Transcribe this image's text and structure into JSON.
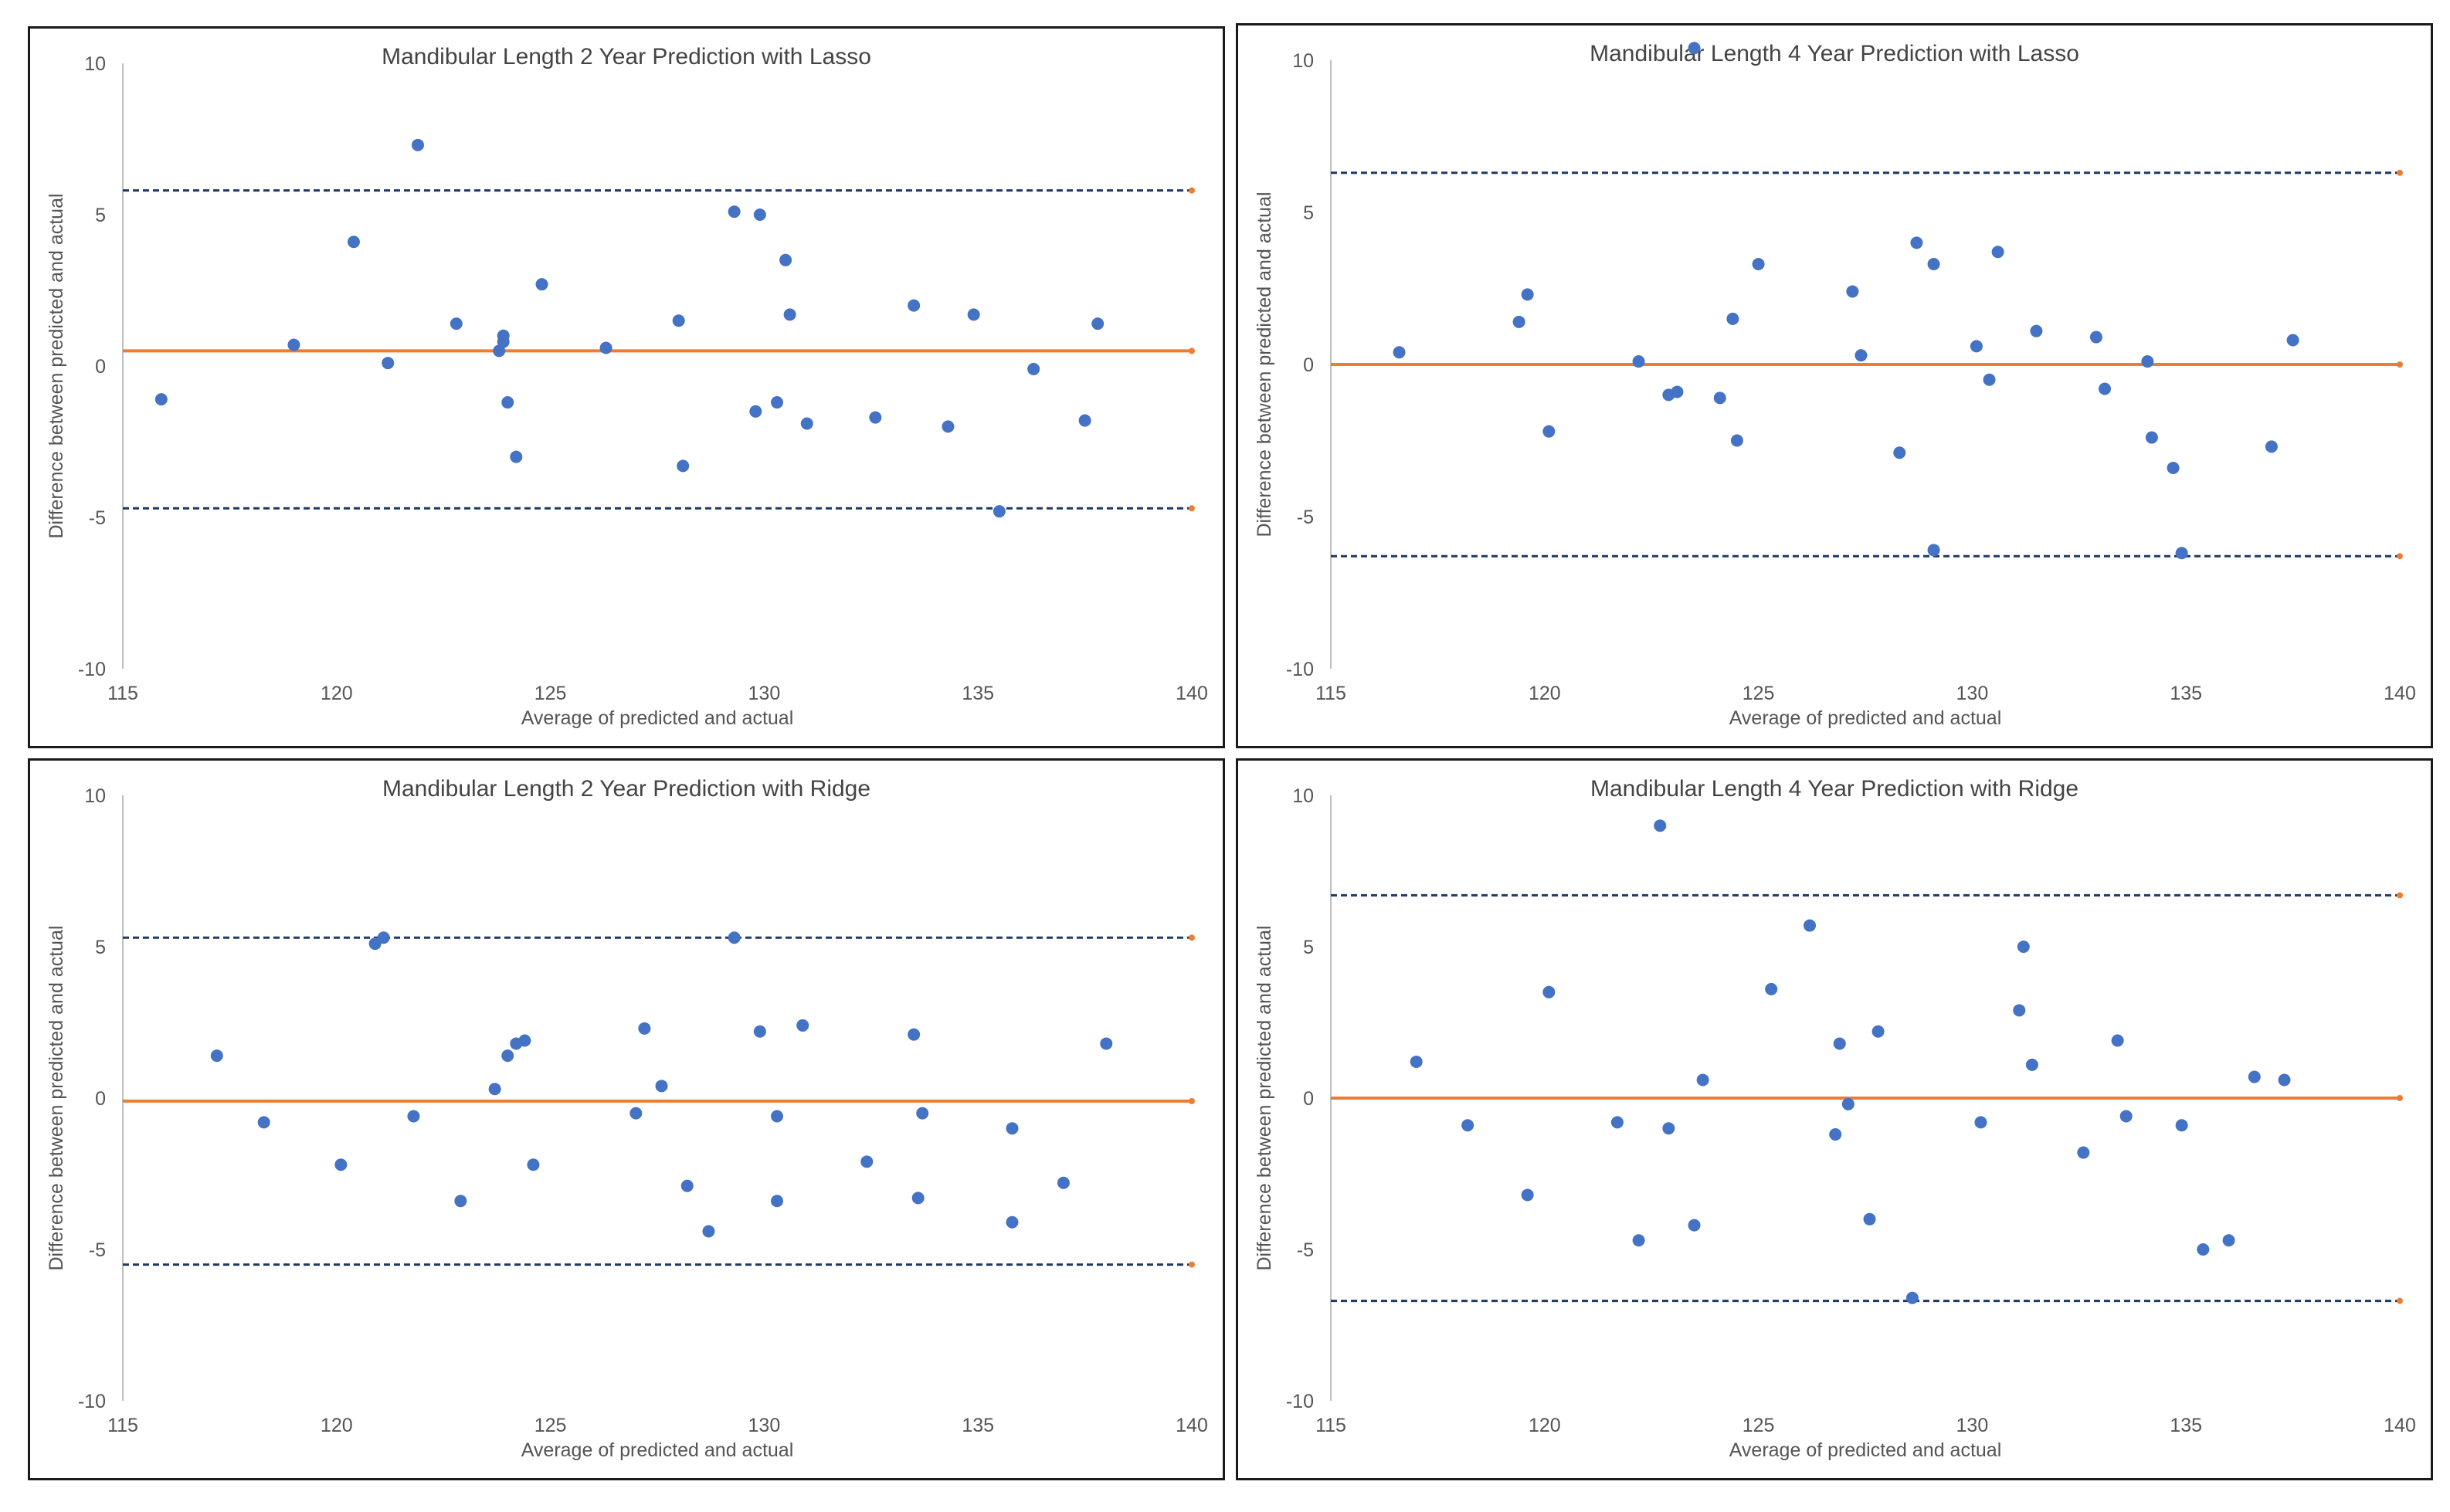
{
  "colors": {
    "points": "#4472c4",
    "mean_line": "#ed7d31",
    "limit_line": "#1f3864",
    "axis": "#bfbfbf",
    "text": "#555555",
    "border": "#1a1a1a"
  },
  "chart_data": [
    {
      "type": "scatter",
      "title": "Mandibular Length 2 Year Prediction with Lasso",
      "xlabel": "Average of predicted and actual",
      "ylabel": "Difference between predicted and actual",
      "xlim": [
        115,
        140
      ],
      "ylim": [
        -10,
        10
      ],
      "xticks": [
        "115",
        "120",
        "125",
        "130",
        "135",
        "140"
      ],
      "yticks": [
        "10",
        "5",
        "0",
        "-5",
        "-10"
      ],
      "mean": 0.5,
      "upper_limit": 5.8,
      "lower_limit": -4.7,
      "grid": false,
      "legend": "none",
      "points": [
        [
          115.9,
          -1.1
        ],
        [
          119.0,
          0.7
        ],
        [
          120.4,
          4.1
        ],
        [
          121.2,
          0.1
        ],
        [
          121.9,
          7.3
        ],
        [
          122.8,
          1.4
        ],
        [
          123.8,
          0.5
        ],
        [
          123.9,
          1.0
        ],
        [
          123.9,
          0.8
        ],
        [
          124.0,
          -1.2
        ],
        [
          124.2,
          -3.0
        ],
        [
          124.8,
          2.7
        ],
        [
          126.3,
          0.6
        ],
        [
          128.0,
          1.5
        ],
        [
          128.1,
          -3.3
        ],
        [
          129.3,
          5.1
        ],
        [
          129.8,
          -1.5
        ],
        [
          129.9,
          5.0
        ],
        [
          130.3,
          -1.2
        ],
        [
          130.5,
          3.5
        ],
        [
          130.6,
          1.7
        ],
        [
          131.0,
          -1.9
        ],
        [
          132.6,
          -1.7
        ],
        [
          133.5,
          2.0
        ],
        [
          134.3,
          -2.0
        ],
        [
          134.9,
          1.7
        ],
        [
          135.5,
          -4.8
        ],
        [
          136.3,
          -0.1
        ],
        [
          137.5,
          -1.8
        ],
        [
          137.8,
          1.4
        ]
      ]
    },
    {
      "type": "scatter",
      "title": "Mandibular Length 4 Year Prediction with Lasso",
      "xlabel": "Average of predicted and actual",
      "ylabel": "Difference between predicted and actual",
      "xlim": [
        115,
        140
      ],
      "ylim": [
        -10,
        10
      ],
      "xticks": [
        "115",
        "120",
        "125",
        "130",
        "135",
        "140"
      ],
      "yticks": [
        "10",
        "5",
        "0",
        "-5",
        "-10"
      ],
      "mean": 0.0,
      "upper_limit": 6.3,
      "lower_limit": -6.3,
      "grid": false,
      "legend": "none",
      "points": [
        [
          116.6,
          0.4
        ],
        [
          119.4,
          1.4
        ],
        [
          119.6,
          2.3
        ],
        [
          120.1,
          -2.2
        ],
        [
          122.2,
          0.1
        ],
        [
          122.9,
          -1.0
        ],
        [
          123.1,
          -0.9
        ],
        [
          123.5,
          10.4
        ],
        [
          124.1,
          -1.1
        ],
        [
          124.4,
          1.5
        ],
        [
          124.5,
          -2.5
        ],
        [
          125.0,
          3.3
        ],
        [
          127.2,
          2.4
        ],
        [
          127.4,
          0.3
        ],
        [
          128.3,
          -2.9
        ],
        [
          128.7,
          4.0
        ],
        [
          129.1,
          3.3
        ],
        [
          129.1,
          -6.1
        ],
        [
          130.1,
          0.6
        ],
        [
          130.4,
          -0.5
        ],
        [
          130.6,
          3.7
        ],
        [
          131.5,
          1.1
        ],
        [
          132.9,
          0.9
        ],
        [
          133.1,
          -0.8
        ],
        [
          134.1,
          0.1
        ],
        [
          134.2,
          -2.4
        ],
        [
          134.7,
          -3.4
        ],
        [
          134.9,
          -6.2
        ],
        [
          137.0,
          -2.7
        ],
        [
          137.5,
          0.8
        ]
      ]
    },
    {
      "type": "scatter",
      "title": "Mandibular Length 2 Year Prediction with Ridge",
      "xlabel": "Average of predicted and actual",
      "ylabel": "Difference between predicted and actual",
      "xlim": [
        115,
        140
      ],
      "ylim": [
        -10,
        10
      ],
      "xticks": [
        "115",
        "120",
        "125",
        "130",
        "135",
        "140"
      ],
      "yticks": [
        "10",
        "5",
        "0",
        "-5",
        "-10"
      ],
      "mean": -0.1,
      "upper_limit": 5.3,
      "lower_limit": -5.5,
      "grid": false,
      "legend": "none",
      "points": [
        [
          117.2,
          1.4
        ],
        [
          118.3,
          -0.8
        ],
        [
          120.1,
          -2.2
        ],
        [
          120.9,
          5.1
        ],
        [
          121.1,
          5.3
        ],
        [
          121.8,
          -0.6
        ],
        [
          122.9,
          -3.4
        ],
        [
          123.7,
          0.3
        ],
        [
          124.0,
          1.4
        ],
        [
          124.2,
          1.8
        ],
        [
          124.4,
          1.9
        ],
        [
          124.6,
          -2.2
        ],
        [
          127.0,
          -0.5
        ],
        [
          127.2,
          2.3
        ],
        [
          127.6,
          0.4
        ],
        [
          128.2,
          -2.9
        ],
        [
          128.7,
          -4.4
        ],
        [
          129.3,
          5.3
        ],
        [
          129.9,
          2.2
        ],
        [
          130.3,
          -0.6
        ],
        [
          130.3,
          -3.4
        ],
        [
          130.9,
          2.4
        ],
        [
          132.4,
          -2.1
        ],
        [
          133.5,
          2.1
        ],
        [
          133.6,
          -3.3
        ],
        [
          133.7,
          -0.5
        ],
        [
          135.8,
          -1.0
        ],
        [
          135.8,
          -4.1
        ],
        [
          137.0,
          -2.8
        ],
        [
          138.0,
          1.8
        ]
      ]
    },
    {
      "type": "scatter",
      "title": "Mandibular Length 4 Year Prediction with Ridge",
      "xlabel": "Average of predicted and actual",
      "ylabel": "Difference between predicted and actual",
      "xlim": [
        115,
        140
      ],
      "ylim": [
        -10,
        10
      ],
      "xticks": [
        "115",
        "120",
        "125",
        "130",
        "135",
        "140"
      ],
      "yticks": [
        "10",
        "5",
        "0",
        "-5",
        "-10"
      ],
      "mean": 0.0,
      "upper_limit": 6.7,
      "lower_limit": -6.7,
      "grid": false,
      "legend": "none",
      "points": [
        [
          117.0,
          1.2
        ],
        [
          118.2,
          -0.9
        ],
        [
          119.6,
          -3.2
        ],
        [
          120.1,
          3.5
        ],
        [
          121.7,
          -0.8
        ],
        [
          122.2,
          -4.7
        ],
        [
          122.7,
          9.0
        ],
        [
          122.9,
          -1.0
        ],
        [
          123.5,
          -4.2
        ],
        [
          123.7,
          0.6
        ],
        [
          125.3,
          3.6
        ],
        [
          126.2,
          5.7
        ],
        [
          126.8,
          -1.2
        ],
        [
          126.9,
          1.8
        ],
        [
          127.1,
          -0.2
        ],
        [
          127.6,
          -4.0
        ],
        [
          127.8,
          2.2
        ],
        [
          128.6,
          -6.6
        ],
        [
          130.2,
          -0.8
        ],
        [
          131.1,
          2.9
        ],
        [
          131.2,
          5.0
        ],
        [
          131.4,
          1.1
        ],
        [
          132.6,
          -1.8
        ],
        [
          133.4,
          1.9
        ],
        [
          133.6,
          -0.6
        ],
        [
          134.9,
          -0.9
        ],
        [
          135.4,
          -5.0
        ],
        [
          136.0,
          -4.7
        ],
        [
          136.6,
          0.7
        ],
        [
          137.3,
          0.6
        ]
      ]
    }
  ]
}
